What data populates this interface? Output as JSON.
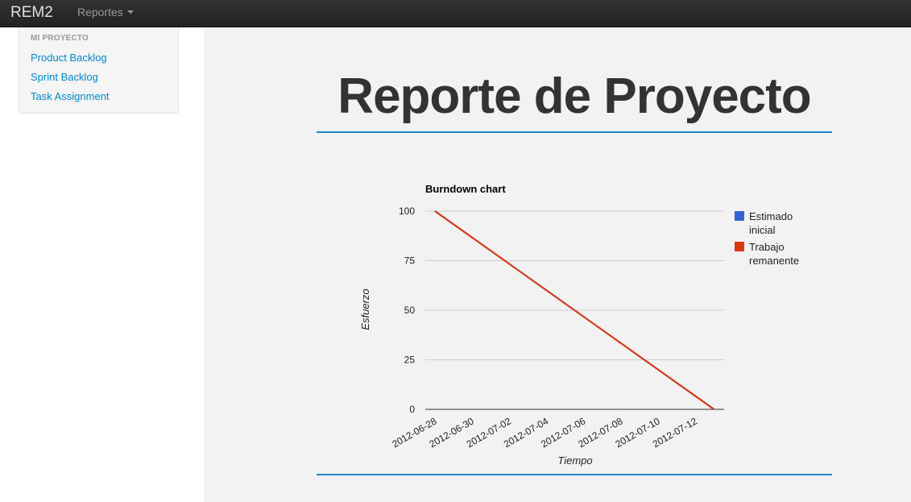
{
  "navbar": {
    "brand": "REM2",
    "menu_label": "Reportes"
  },
  "sidebar": {
    "header": "MI PROYECTO",
    "links": [
      "Product Backlog",
      "Sprint Backlog",
      "Task Assignment"
    ]
  },
  "main": {
    "title": "Reporte de Proyecto"
  },
  "chart_data": {
    "type": "line",
    "title": "Burndown chart",
    "xlabel": "Tiempo",
    "ylabel": "Esfuerzo",
    "ylim": [
      0,
      100
    ],
    "y_ticks": [
      "0",
      "25",
      "50",
      "75",
      "100"
    ],
    "x_ticks": [
      "2012-06-28",
      "2012-06-30",
      "2012-07-02",
      "2012-07-04",
      "2012-07-06",
      "2012-07-08",
      "2012-07-10",
      "2012-07-12"
    ],
    "grid": true,
    "legend_position": "right",
    "series": [
      {
        "name": "Estimado inicial",
        "color": "#3366cc",
        "x": [
          "2012-06-28",
          "2012-07-13"
        ],
        "y": [
          100,
          0
        ]
      },
      {
        "name": "Trabajo remanente",
        "color": "#dc3912",
        "x": [
          "2012-06-28",
          "2012-07-13"
        ],
        "y": [
          100,
          0
        ]
      }
    ]
  }
}
